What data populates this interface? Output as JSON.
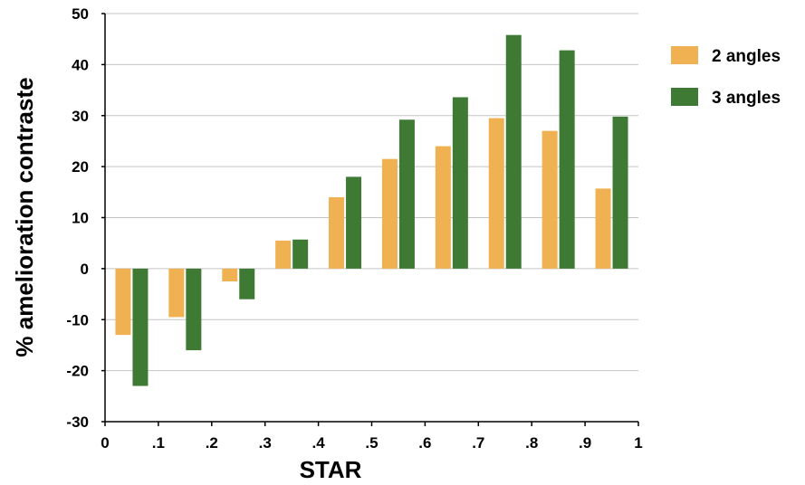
{
  "chart_data": {
    "type": "bar",
    "title": "",
    "xlabel": "STAR",
    "ylabel": "% amelioration contraste",
    "ylim": [
      -30,
      50
    ],
    "yticks": [
      50,
      40,
      30,
      20,
      10,
      0,
      -10,
      -20,
      -30
    ],
    "xticks": [
      "0",
      ".1",
      ".2",
      ".3",
      ".4",
      ".5",
      ".6",
      ".7",
      ".8",
      ".9",
      "1"
    ],
    "grid": true,
    "legend_position": "top-right",
    "colors": {
      "2 angles": "#EFB152",
      "3 angles": "#3F7A35"
    },
    "series": [
      {
        "name": "2 angles",
        "values": [
          -13,
          -9.5,
          -2.5,
          5.5,
          14,
          21.5,
          24,
          29.5,
          27,
          15.7
        ]
      },
      {
        "name": "3 angles",
        "values": [
          -23,
          -16,
          -6,
          5.7,
          18,
          29.2,
          33.6,
          45.8,
          42.8,
          29.8
        ]
      }
    ]
  }
}
